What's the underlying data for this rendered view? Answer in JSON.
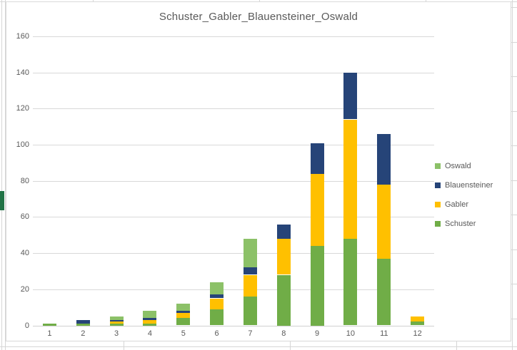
{
  "app_background": {
    "spreadsheet_gridline_color": "#d6d6d6",
    "excel_green_accent": "#217346"
  },
  "chart_data": {
    "type": "bar",
    "stacked": true,
    "title": "Schuster_Gabler_Blauensteiner_Oswald",
    "title_color": "#595959",
    "categories": [
      "1",
      "2",
      "3",
      "4",
      "5",
      "6",
      "7",
      "8",
      "9",
      "10",
      "11",
      "12"
    ],
    "series": [
      {
        "name": "Schuster",
        "color": "#70ad47",
        "values": [
          1,
          1,
          1,
          1,
          4,
          9,
          16,
          28,
          44,
          48,
          37,
          2
        ]
      },
      {
        "name": "Gabler",
        "color": "#ffc000",
        "values": [
          0,
          0,
          1,
          2,
          3,
          6,
          12,
          20,
          40,
          66,
          41,
          3
        ]
      },
      {
        "name": "Blauensteiner",
        "color": "#264478",
        "values": [
          0,
          2,
          1,
          1,
          1,
          2,
          4,
          8,
          17,
          26,
          28,
          0
        ]
      },
      {
        "name": "Oswald",
        "color": "#8cc168",
        "values": [
          0,
          0,
          2,
          4,
          4,
          7,
          16,
          0,
          0,
          0,
          0,
          0
        ]
      }
    ],
    "totals": [
      1,
      3,
      5,
      8,
      12,
      24,
      48,
      56,
      101,
      140,
      106,
      5
    ],
    "ylim": [
      0,
      160
    ],
    "ytick_step": 20,
    "yticks": [
      "0",
      "20",
      "40",
      "60",
      "80",
      "100",
      "120",
      "140",
      "160"
    ],
    "grid": true,
    "gridline_color": "#d9d9d9",
    "axis_text_color": "#595959",
    "legend_position": "right",
    "legend_order": [
      "Oswald",
      "Blauensteiner",
      "Gabler",
      "Schuster"
    ]
  }
}
